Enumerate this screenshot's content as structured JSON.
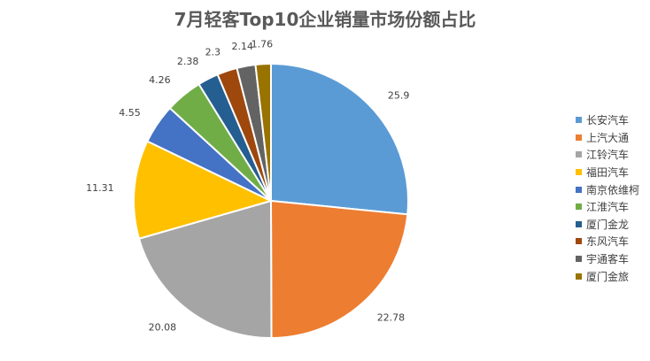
{
  "chart_data": {
    "type": "pie",
    "title": "7月轻客Top10企业销量市场份额占比",
    "legend_position": "right",
    "slices": [
      {
        "name": "长安汽车",
        "value": 25.9,
        "label": "25.9",
        "color": "#5B9BD5"
      },
      {
        "name": "上汽大通",
        "value": 22.78,
        "label": "22.78",
        "color": "#ED7D31"
      },
      {
        "name": "江铃汽车",
        "value": 20.08,
        "label": "20.08",
        "color": "#A5A5A5"
      },
      {
        "name": "福田汽车",
        "value": 11.31,
        "label": "11.31",
        "color": "#FFC000"
      },
      {
        "name": "南京依维柯",
        "value": 4.55,
        "label": "4.55",
        "color": "#4472C4"
      },
      {
        "name": "江淮汽车",
        "value": 4.26,
        "label": "4.26",
        "color": "#70AD47"
      },
      {
        "name": "厦门金龙",
        "value": 2.38,
        "label": "2.38",
        "color": "#255E91"
      },
      {
        "name": "东风汽车",
        "value": 2.3,
        "label": "2.3",
        "color": "#9E480E"
      },
      {
        "name": "宇通客车",
        "value": 2.14,
        "label": "2.14",
        "color": "#636363"
      },
      {
        "name": "厦门金旅",
        "value": 1.76,
        "label": "1.76",
        "color": "#997300"
      }
    ]
  }
}
